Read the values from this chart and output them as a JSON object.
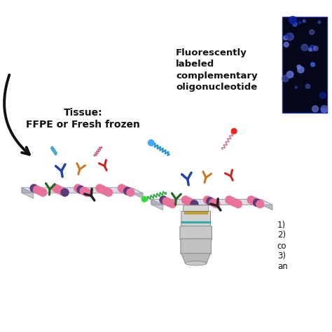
{
  "background_color": "#ffffff",
  "text_tissue": "Tissue:\nFFPE or Fresh frozen",
  "text_fluorescent": "Fluorescently\nlabeled\ncomplementary\noligonucleotide",
  "text_list_1": "1)",
  "text_list_2": "2)",
  "text_list_co": "co",
  "text_list_3": "3)",
  "text_list_an": "an",
  "arrow_color": "#111111",
  "pink_color": "#e8729a",
  "purple_color": "#5a3c7a",
  "slide_top_color": "#dcdce8",
  "slide_side_color": "#b8b8c8",
  "slide_bottom_color": "#c8c8d8",
  "slide_edge_color": "#999999",
  "blue_ab": "#2244aa",
  "orange_ab": "#cc7722",
  "red_ab": "#cc2222",
  "green_ab": "#226622",
  "black_ab": "#222222",
  "fig_width": 4.74,
  "fig_height": 4.74,
  "dpi": 100
}
